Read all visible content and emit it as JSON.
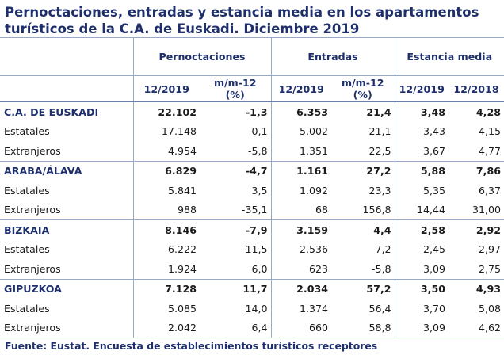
{
  "title": "Pernoctaciones, entradas y estancia media en los apartamentos turísticos de la C.A. de Euskadi. Diciembre 2019",
  "groups": {
    "pernoctaciones": "Pernoctaciones",
    "entradas": "Entradas",
    "estancia": "Estancia media"
  },
  "subheaders": {
    "p_period": "12/2019",
    "p_var": "m/m-12 (%)",
    "e_period": "12/2019",
    "e_var": "m/m-12 (%)",
    "s_2019": "12/2019",
    "s_2018": "12/2018"
  },
  "rows": [
    {
      "label": "C.A. DE EUSKADI",
      "p": "22.102",
      "pv": "-1,3",
      "e": "6.353",
      "ev": "21,4",
      "s19": "3,48",
      "s18": "4,28"
    },
    {
      "label": "Estatales",
      "p": "17.148",
      "pv": "0,1",
      "e": "5.002",
      "ev": "21,1",
      "s19": "3,43",
      "s18": "4,15"
    },
    {
      "label": "Extranjeros",
      "p": "4.954",
      "pv": "-5,8",
      "e": "1.351",
      "ev": "22,5",
      "s19": "3,67",
      "s18": "4,77"
    },
    {
      "label": "ARABA/ÁLAVA",
      "p": "6.829",
      "pv": "-4,7",
      "e": "1.161",
      "ev": "27,2",
      "s19": "5,88",
      "s18": "7,86"
    },
    {
      "label": "Estatales",
      "p": "5.841",
      "pv": "3,5",
      "e": "1.092",
      "ev": "23,3",
      "s19": "5,35",
      "s18": "6,37"
    },
    {
      "label": "Extranjeros",
      "p": "988",
      "pv": "-35,1",
      "e": "68",
      "ev": "156,8",
      "s19": "14,44",
      "s18": "31,00"
    },
    {
      "label": "BIZKAIA",
      "p": "8.146",
      "pv": "-7,9",
      "e": "3.159",
      "ev": "4,4",
      "s19": "2,58",
      "s18": "2,92"
    },
    {
      "label": "Estatales",
      "p": "6.222",
      "pv": "-11,5",
      "e": "2.536",
      "ev": "7,2",
      "s19": "2,45",
      "s18": "2,97"
    },
    {
      "label": "Extranjeros",
      "p": "1.924",
      "pv": "6,0",
      "e": "623",
      "ev": "-5,8",
      "s19": "3,09",
      "s18": "2,75"
    },
    {
      "label": "GIPUZKOA",
      "p": "7.128",
      "pv": "11,7",
      "e": "2.034",
      "ev": "57,2",
      "s19": "3,50",
      "s18": "4,93"
    },
    {
      "label": "Estatales",
      "p": "5.085",
      "pv": "14,0",
      "e": "1.374",
      "ev": "56,4",
      "s19": "3,70",
      "s18": "5,08"
    },
    {
      "label": "Extranjeros",
      "p": "2.042",
      "pv": "6,4",
      "e": "660",
      "ev": "58,8",
      "s19": "3,09",
      "s18": "4,62"
    }
  ],
  "source": "Fuente: Eustat. Encuesta de establecimientos turísticos receptores"
}
